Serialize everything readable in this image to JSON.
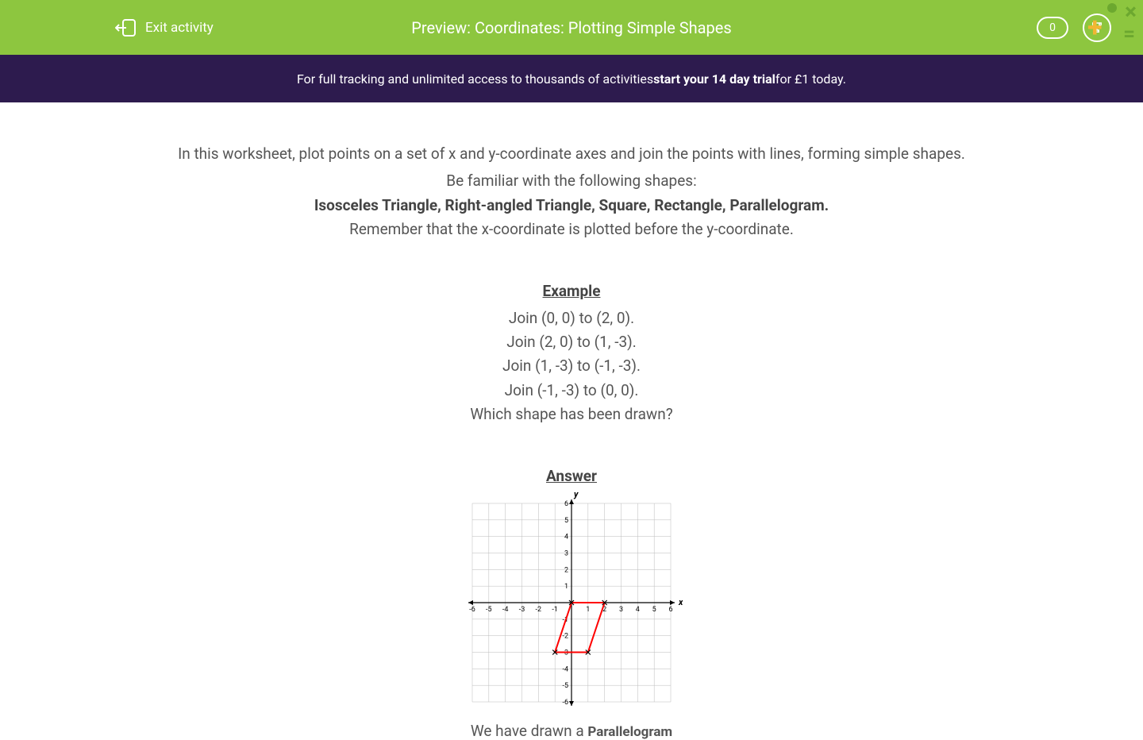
{
  "header": {
    "exit_label": "Exit activity",
    "title": "Preview: Coordinates: Plotting Simple Shapes",
    "score": "0",
    "bg_color": "#8dc63f"
  },
  "banner": {
    "prefix": "For full tracking and unlimited access to thousands of activities ",
    "bold": "start your 14 day trial",
    "suffix": " for £1 today.",
    "bg_color": "#2d1b4e"
  },
  "content": {
    "intro1": "In this worksheet, plot points on a set of x and y-coordinate axes and join the points with lines, forming simple shapes.",
    "intro2": "Be familiar with the following shapes:",
    "shapes": "Isosceles Triangle, Right-angled Triangle, Square, Rectangle, Parallelogram.",
    "remember": "Remember that the x-coordinate is plotted before the y-coordinate.",
    "example_head": "Example",
    "join1": "Join (0, 0) to (2, 0).",
    "join2": "Join (2, 0) to (1, -3).",
    "join3": "Join (1, -3) to (-1, -3).",
    "join4": "Join (-1, -3) to (0, 0).",
    "question": "Which shape has been drawn?",
    "answer_head": "Answer",
    "cutoff_text": "We have drawn a ",
    "cutoff_bold": "Parallelogram"
  },
  "chart": {
    "type": "coordinate-grid",
    "x_range": [
      -6,
      6
    ],
    "y_range": [
      -6,
      6
    ],
    "x_ticks": [
      -6,
      -5,
      -4,
      -3,
      -2,
      -1,
      1,
      2,
      3,
      4,
      5,
      6
    ],
    "y_ticks": [
      -6,
      -5,
      -4,
      -3,
      -2,
      -1,
      1,
      2,
      3,
      4,
      5,
      6
    ],
    "x_label": "x",
    "y_label": "y",
    "grid_color": "#bbbbbb",
    "axis_color": "#000000",
    "shape_color": "#ff0000",
    "shape_points": [
      [
        0,
        0
      ],
      [
        2,
        0
      ],
      [
        1,
        -3
      ],
      [
        -1,
        -3
      ]
    ],
    "marker_style": "x",
    "tick_fontsize": 9,
    "line_width": 2
  }
}
